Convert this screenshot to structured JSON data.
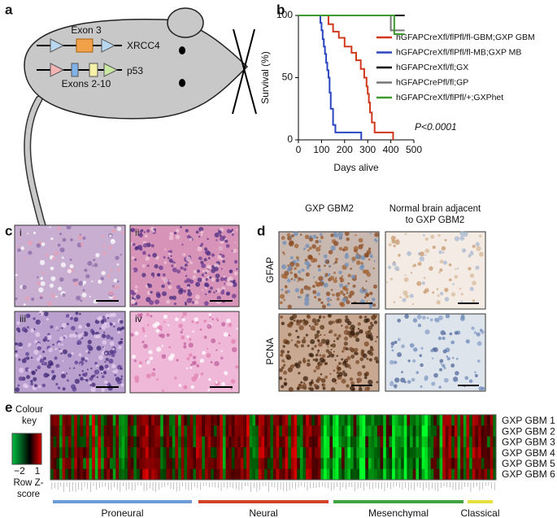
{
  "panels": {
    "a": {
      "label": "a",
      "gene1": "XRCC4",
      "exon1": "Exon 3",
      "gene2": "p53",
      "exon2": "Exons 2-10"
    },
    "b": {
      "label": "b"
    },
    "c": {
      "label": "c",
      "images": [
        "i",
        "ii",
        "iii",
        "iv"
      ]
    },
    "d": {
      "label": "d",
      "columns": [
        "GXP GBM2",
        "Normal brain adjacent to GXP GBM2"
      ],
      "rows": [
        "GFAP",
        "PCNA"
      ]
    },
    "e": {
      "label": "e",
      "key_title": "Colour key",
      "key_min": "−2",
      "key_max": "1",
      "key_unit": "Row Z-score",
      "rows": [
        "GXP GBM 1",
        "GXP GBM 2",
        "GXP GBM 3",
        "GXP GBM 4",
        "GXP GBM 5",
        "GXP GBM 6"
      ],
      "groups": [
        {
          "name": "Proneural",
          "color": "#6d9bd8"
        },
        {
          "name": "Neural",
          "color": "#d2442a"
        },
        {
          "name": "Mesenchymal",
          "color": "#3fa33f"
        },
        {
          "name": "Classical",
          "color": "#e6df3e"
        }
      ]
    }
  },
  "chart_data": {
    "type": "line",
    "xlabel": "Days alive",
    "ylabel": "Survival (%)",
    "annotation": "P<0.0001",
    "xlim": [
      0,
      500
    ],
    "xticks": [
      0,
      100,
      200,
      300,
      400,
      500
    ],
    "ylim": [
      0,
      100
    ],
    "yticks": [
      0,
      50,
      100
    ],
    "series": [
      {
        "name": "hGFAPCreXfl/flPfl/fl-GBM;GXP GBM",
        "color": "#d0381e",
        "x": [
          0,
          130,
          130,
          150,
          150,
          175,
          175,
          200,
          200,
          230,
          230,
          250,
          250,
          270,
          270,
          285,
          285,
          295,
          295,
          300,
          300,
          305,
          305,
          310,
          310,
          318,
          318,
          330,
          330,
          410,
          410
        ],
        "values": [
          100,
          100,
          93,
          93,
          87,
          87,
          82,
          82,
          75,
          75,
          70,
          70,
          64,
          64,
          57,
          57,
          50,
          50,
          43,
          43,
          37,
          37,
          30,
          30,
          22,
          22,
          14,
          14,
          6,
          6,
          0
        ]
      },
      {
        "name": "hGFAPCreXfl/flPfl/fl-MB;GXP MB",
        "color": "#2a45c0",
        "x": [
          0,
          95,
          95,
          100,
          100,
          105,
          105,
          110,
          110,
          115,
          115,
          120,
          120,
          125,
          125,
          130,
          130,
          135,
          135,
          140,
          140,
          150,
          150,
          160,
          160,
          272,
          272
        ],
        "values": [
          100,
          100,
          94,
          94,
          88,
          88,
          81,
          81,
          75,
          75,
          69,
          69,
          62,
          62,
          56,
          56,
          50,
          50,
          38,
          38,
          25,
          25,
          12,
          12,
          6,
          6,
          0
        ]
      },
      {
        "name": "hGFAPCreXfl/fl;GX",
        "color": "#000000",
        "x": [
          0,
          460
        ],
        "values": [
          100,
          100
        ]
      },
      {
        "name": "hGFAPCrePfl/fl;GP",
        "color": "#777777",
        "x": [
          0,
          400,
          400,
          460
        ],
        "values": [
          100,
          100,
          88,
          88
        ]
      },
      {
        "name": "hGFAPCreXfl/flPfl/+;GXPhet",
        "color": "#3c9a2e",
        "x": [
          0,
          415,
          415,
          460
        ],
        "values": [
          100,
          100,
          85,
          85
        ]
      }
    ]
  }
}
